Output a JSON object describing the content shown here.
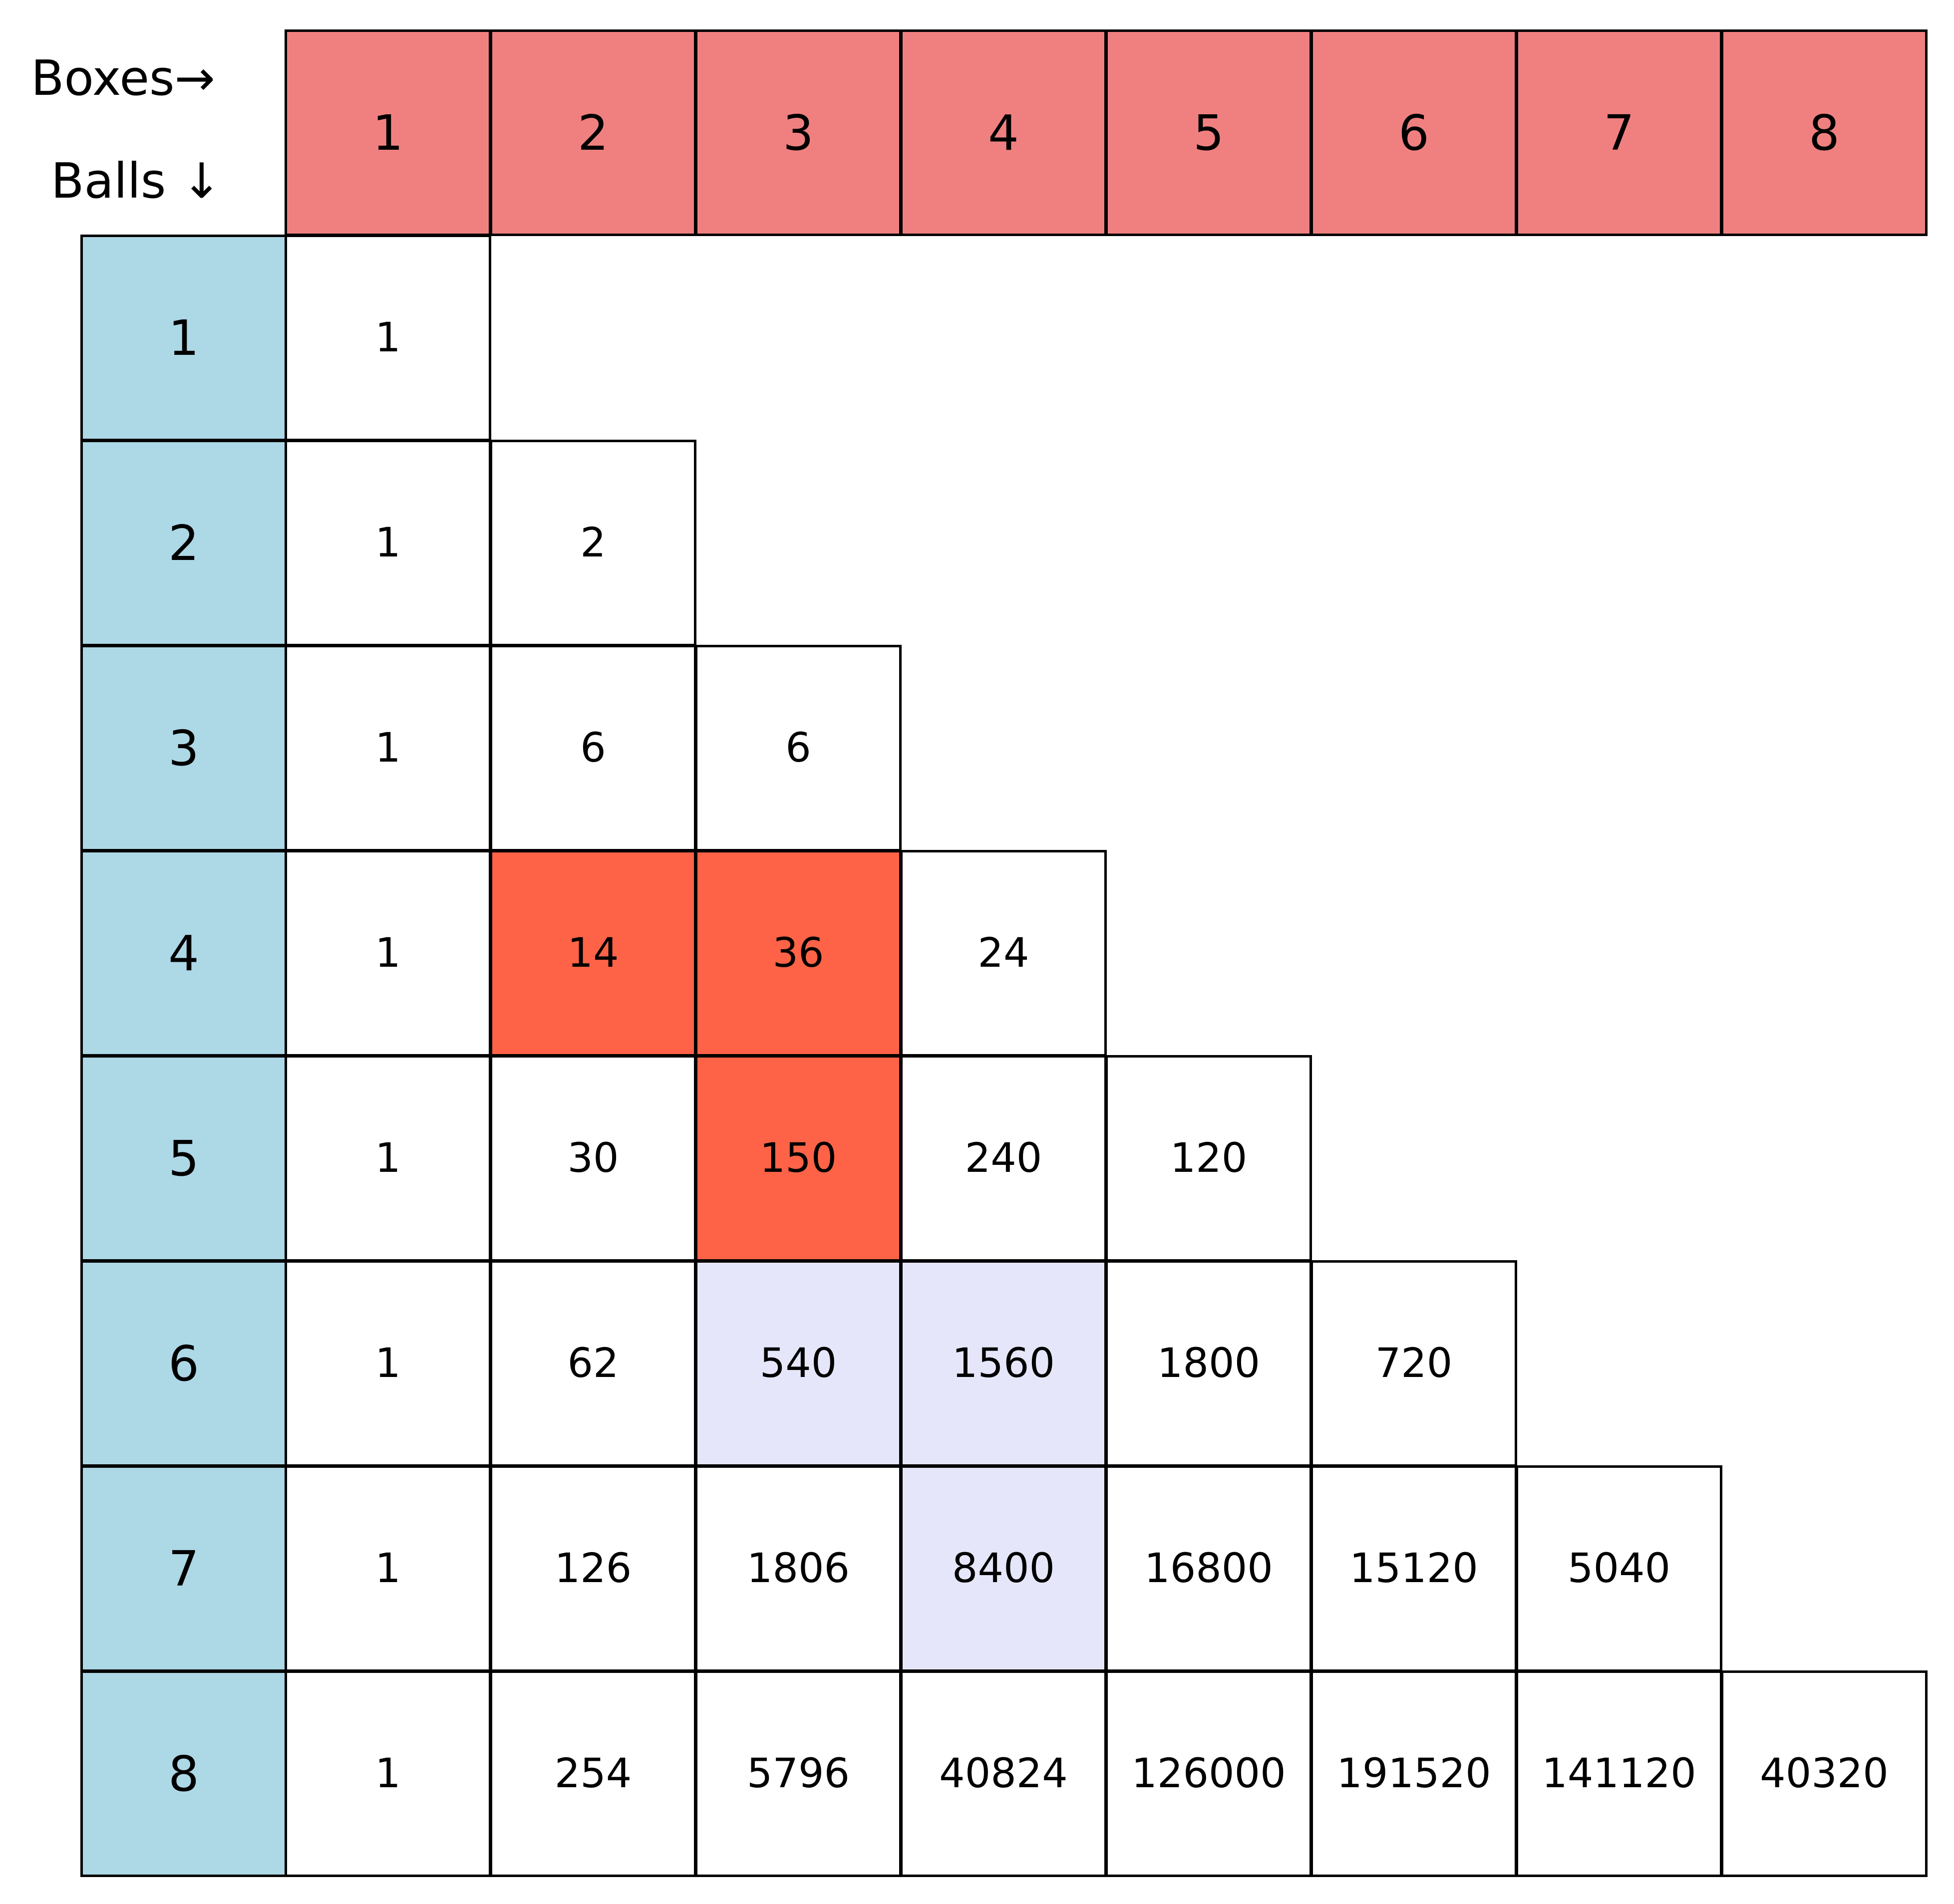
{
  "corner": {
    "columns_label": "Boxes→",
    "rows_label": "Balls ↓"
  },
  "colors": {
    "box_header": "#F08080",
    "ball_header": "#ADD8E6",
    "cell_default": "#FFFFFF",
    "highlight_red": "#FF6347",
    "highlight_lavender": "#E6E6FA",
    "border": "#000000"
  },
  "box_headers": [
    "1",
    "2",
    "3",
    "4",
    "5",
    "6",
    "7",
    "8"
  ],
  "ball_headers": [
    "1",
    "2",
    "3",
    "4",
    "5",
    "6",
    "7",
    "8"
  ],
  "rows": [
    [
      "1"
    ],
    [
      "1",
      "2"
    ],
    [
      "1",
      "6",
      "6"
    ],
    [
      "1",
      "14",
      "36",
      "24"
    ],
    [
      "1",
      "30",
      "150",
      "240",
      "120"
    ],
    [
      "1",
      "62",
      "540",
      "1560",
      "1800",
      "720"
    ],
    [
      "1",
      "126",
      "1806",
      "8400",
      "16800",
      "15120",
      "5040"
    ],
    [
      "1",
      "254",
      "5796",
      "40824",
      "126000",
      "191520",
      "141120",
      "40320"
    ]
  ],
  "highlights": {
    "red": [
      [
        4,
        2
      ],
      [
        4,
        3
      ],
      [
        5,
        3
      ]
    ],
    "lavender": [
      [
        6,
        3
      ],
      [
        6,
        4
      ],
      [
        7,
        4
      ]
    ]
  }
}
